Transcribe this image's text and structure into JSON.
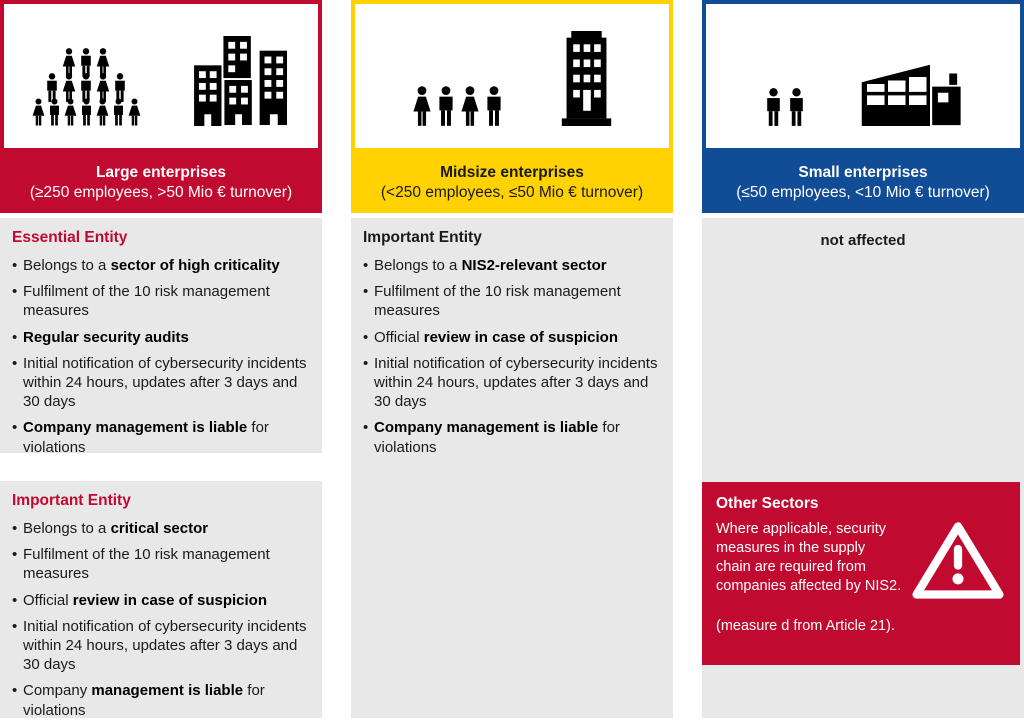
{
  "colors": {
    "red": "#C00A30",
    "yellow": "#FFD200",
    "blue": "#114C96",
    "panel_gray": "#E8E8E9",
    "text": "#1A1A1A"
  },
  "icons": {
    "large_people": "crowd-pyramid-icon",
    "large_buildings": "city-buildings-icon",
    "mid_people": "people-group-icon",
    "mid_building": "office-tower-icon",
    "small_people": "people-pair-icon",
    "small_building": "factory-icon",
    "callout_icon": "warning-triangle-icon"
  },
  "columns": [
    {
      "id": "large",
      "header": {
        "title": "Large enterprises",
        "subtitle": "(≥250 employees, >50 Mio € turnover)"
      },
      "sections": [
        {
          "heading": "Essential Entity",
          "bullets": [
            [
              {
                "t": "Belongs to a "
              },
              {
                "t": "sector of high criticality",
                "b": true
              }
            ],
            [
              {
                "t": "Fulfilment of the 10 risk management measures"
              }
            ],
            [
              {
                "t": "Regular security audits",
                "b": true
              }
            ],
            [
              {
                "t": "Initial notification of cybersecurity incidents within 24 hours, updates after 3 days and 30 days"
              }
            ],
            [
              {
                "t": "Company management is liable",
                "b": true
              },
              {
                "t": " for violations"
              }
            ]
          ]
        },
        {
          "heading": "Important Entity",
          "bullets": [
            [
              {
                "t": "Belongs to a "
              },
              {
                "t": "critical sector",
                "b": true
              }
            ],
            [
              {
                "t": "Fulfilment of the 10 risk management measures"
              }
            ],
            [
              {
                "t": "Official "
              },
              {
                "t": "review in case of suspicion",
                "b": true
              }
            ],
            [
              {
                "t": "Initial notification of cybersecurity incidents within 24 hours, updates after 3 days and 30 days"
              }
            ],
            [
              {
                "t": "Company "
              },
              {
                "t": "management is liable",
                "b": true
              },
              {
                "t": " for violations"
              }
            ]
          ]
        }
      ]
    },
    {
      "id": "midsize",
      "header": {
        "title": "Midsize enterprises",
        "subtitle": "(<250 employees, ≤50 Mio € turnover)"
      },
      "sections": [
        {
          "heading": "Important Entity",
          "bullets": [
            [
              {
                "t": "Belongs to a "
              },
              {
                "t": "NIS2-relevant sector",
                "b": true
              }
            ],
            [
              {
                "t": "Fulfilment of the 10 risk management measures"
              }
            ],
            [
              {
                "t": "Official "
              },
              {
                "t": "review in case of suspicion",
                "b": true
              }
            ],
            [
              {
                "t": "Initial notification of cybersecurity incidents within 24 hours, updates after 3 days and 30 days"
              }
            ],
            [
              {
                "t": "Company management is liable",
                "b": true
              },
              {
                "t": " for violations"
              }
            ]
          ]
        }
      ]
    },
    {
      "id": "small",
      "header": {
        "title": "Small enterprises",
        "subtitle": "(≤50 employees, <10 Mio € turnover)"
      },
      "status": "not affected",
      "callout": {
        "title": "Other Sectors",
        "body": "Where applicable, security measures in the supply chain are required from companies affected by NIS2.",
        "footnote": "(measure d from Article 21)."
      }
    }
  ]
}
